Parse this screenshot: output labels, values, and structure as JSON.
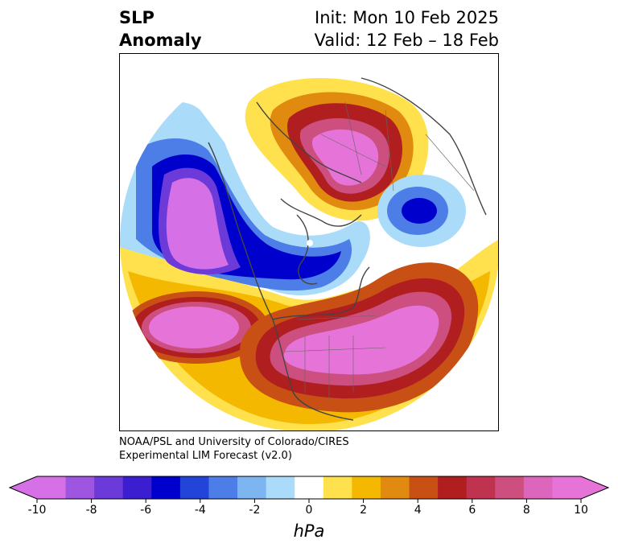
{
  "header": {
    "title_line1": "SLP",
    "title_line2": "Anomaly",
    "init_text": "Init: Mon 10 Feb 2025",
    "valid_text": "Valid: 12 Feb – 18 Feb"
  },
  "credit": {
    "line1": "NOAA/PSL and University of Colorado/CIRES",
    "line2": "Experimental LIM Forecast (v2.0)"
  },
  "colorbar": {
    "unit": "hPa",
    "ticks": [
      "-10",
      "-8",
      "-6",
      "-4",
      "-2",
      "0",
      "2",
      "4",
      "6",
      "8",
      "10"
    ],
    "colors": [
      "#d670e6",
      "#9e55e0",
      "#6b3ad8",
      "#3a1ecf",
      "#0000cc",
      "#2244d8",
      "#4d7de6",
      "#7db5f0",
      "#aadcfa",
      "#ffffff",
      "#ffe14d",
      "#f5b800",
      "#e08a10",
      "#c85015",
      "#b01e20",
      "#c03350",
      "#cc4f80",
      "#db66bb",
      "#e673d8"
    ],
    "extend": "both"
  },
  "map": {
    "projection": "north-polar-stereographic",
    "variable": "sea level pressure anomaly"
  }
}
